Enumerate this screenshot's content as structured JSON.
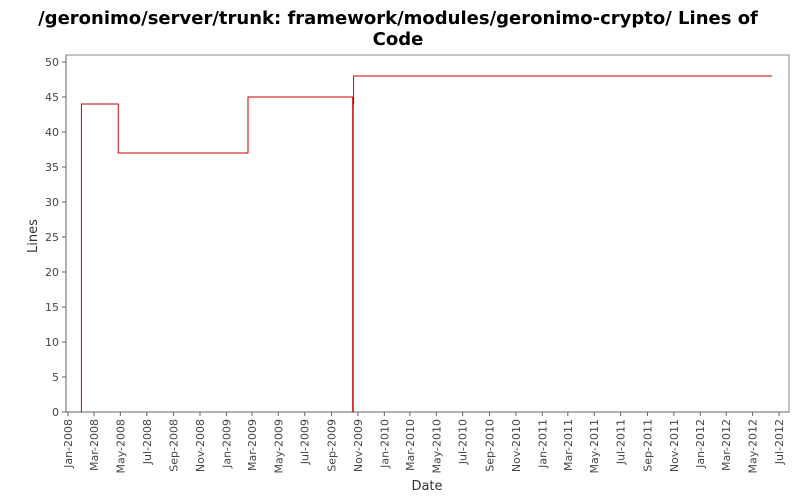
{
  "chart_data": {
    "type": "line",
    "step": true,
    "title_lines": [
      "/geronimo/server/trunk: framework/modules/geronimo-crypto/ Lines of",
      "Code"
    ],
    "xlabel": "Date",
    "ylabel": "Lines",
    "ylim": [
      0,
      50
    ],
    "y_ticks": [
      "0",
      "5",
      "10",
      "15",
      "20",
      "25",
      "30",
      "35",
      "40",
      "45",
      "50"
    ],
    "x_ticks": [
      "Jan-2008",
      "Mar-2008",
      "May-2008",
      "Jul-2008",
      "Sep-2008",
      "Nov-2008",
      "Jan-2009",
      "Mar-2009",
      "May-2009",
      "Jul-2009",
      "Sep-2009",
      "Nov-2009",
      "Jan-2010",
      "Mar-2010",
      "May-2010",
      "Jul-2010",
      "Sep-2010",
      "Nov-2010",
      "Jan-2011",
      "Mar-2011",
      "May-2011",
      "Jul-2011",
      "Sep-2011",
      "Nov-2011",
      "Jan-2012",
      "Mar-2012",
      "May-2012",
      "Jul-2012"
    ],
    "xlim": [
      "2008-01-01",
      "2012-07-01"
    ],
    "series": [
      {
        "color": "#cc0000",
        "points": [
          {
            "x": "2008-02-01",
            "y": 0
          },
          {
            "x": "2008-02-01",
            "y": 44
          },
          {
            "x": "2008-04-26",
            "y": 44
          },
          {
            "x": "2008-04-26",
            "y": 37
          },
          {
            "x": "2009-02-20",
            "y": 37
          },
          {
            "x": "2009-02-20",
            "y": 45
          },
          {
            "x": "2009-10-20",
            "y": 45
          },
          {
            "x": "2009-10-20",
            "y": 0
          },
          {
            "x": "2009-10-21",
            "y": 0
          },
          {
            "x": "2009-10-21",
            "y": 44
          },
          {
            "x": "2009-10-22",
            "y": 44
          },
          {
            "x": "2009-10-22",
            "y": 48
          },
          {
            "x": "2012-06-15",
            "y": 48
          }
        ]
      }
    ],
    "grid": false,
    "colors": {
      "plot_border": "#888888",
      "axis": "#666666"
    }
  }
}
